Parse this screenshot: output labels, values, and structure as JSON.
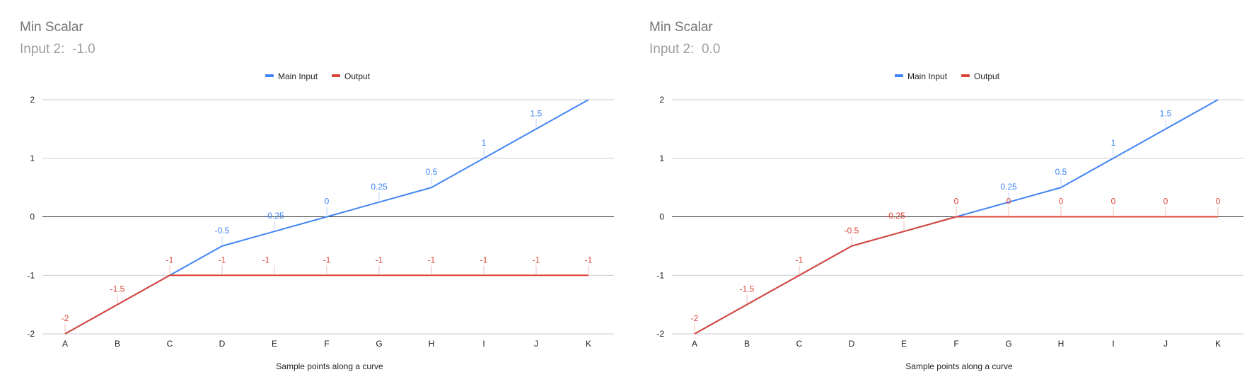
{
  "colors": {
    "main_input": "#4285f4",
    "output": "#db4437",
    "gridline": "#cccccc",
    "zero_line": "#333333"
  },
  "chart_data": [
    {
      "type": "line",
      "title": "Min Scalar",
      "subtitle": "Input 2:  -1.0",
      "xlabel": "Sample points along a curve",
      "ylabel": "",
      "categories": [
        "A",
        "B",
        "C",
        "D",
        "E",
        "F",
        "G",
        "H",
        "I",
        "J",
        "K"
      ],
      "ylim": [
        -2,
        2
      ],
      "yticks": [
        2,
        1,
        0,
        -1,
        -2
      ],
      "legend_position": "top",
      "grid": true,
      "series": [
        {
          "name": "Main Input",
          "values": [
            -2,
            -1.5,
            -1,
            -0.5,
            -0.25,
            0,
            0.25,
            0.5,
            1,
            1.5,
            2
          ],
          "labels": [
            "",
            "",
            "",
            "-0.5",
            "-0.25",
            "0",
            "0.25",
            "0.5",
            "1",
            "1.5",
            ""
          ]
        },
        {
          "name": "Output",
          "values": [
            -2,
            -1.5,
            -1,
            -1,
            -1,
            -1,
            -1,
            -1,
            -1,
            -1,
            -1
          ],
          "labels": [
            "-2",
            "-1.5",
            "-1",
            "-1",
            "-1",
            "-1",
            "-1",
            "-1",
            "-1",
            "-1",
            "-1"
          ]
        }
      ]
    },
    {
      "type": "line",
      "title": "Min Scalar",
      "subtitle": "Input 2:  0.0",
      "xlabel": "Sample points along a curve",
      "ylabel": "",
      "categories": [
        "A",
        "B",
        "C",
        "D",
        "E",
        "F",
        "G",
        "H",
        "I",
        "J",
        "K"
      ],
      "ylim": [
        -2,
        2
      ],
      "yticks": [
        2,
        1,
        0,
        -1,
        -2
      ],
      "legend_position": "top",
      "grid": true,
      "series": [
        {
          "name": "Main Input",
          "values": [
            -2,
            -1.5,
            -1,
            -0.5,
            -0.25,
            0,
            0.25,
            0.5,
            1,
            1.5,
            2
          ],
          "labels": [
            "",
            "",
            "",
            "",
            "",
            "",
            "0.25",
            "0.5",
            "1",
            "1.5",
            ""
          ]
        },
        {
          "name": "Output",
          "values": [
            -2,
            -1.5,
            -1,
            -0.5,
            -0.25,
            0,
            0,
            0,
            0,
            0,
            0
          ],
          "labels": [
            "-2",
            "-1.5",
            "-1",
            "-0.5",
            "-0.25",
            "0",
            "0",
            "0",
            "0",
            "0",
            "0"
          ]
        }
      ]
    }
  ]
}
